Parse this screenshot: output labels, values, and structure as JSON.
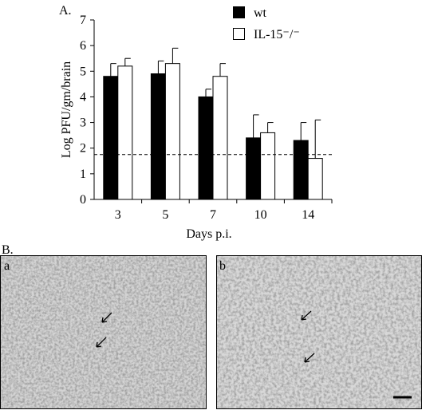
{
  "figure_labels": {
    "panel_a": "A.",
    "panel_b": "B."
  },
  "micrographs": [
    {
      "label": "a"
    },
    {
      "label": "b"
    }
  ],
  "chart_data": {
    "type": "bar",
    "ylabel": "Log PFU/gm/brain",
    "xlabel": "Days p.i.",
    "categories": [
      "3",
      "5",
      "7",
      "10",
      "14"
    ],
    "series": [
      {
        "name": "wt",
        "color": "#000000",
        "values": [
          4.8,
          4.9,
          4.0,
          2.4,
          2.3
        ],
        "errors": [
          0.5,
          0.5,
          0.3,
          0.9,
          0.7
        ]
      },
      {
        "name": "IL-15⁻/⁻",
        "color": "#ffffff",
        "values": [
          5.2,
          5.3,
          4.8,
          2.6,
          1.6
        ],
        "errors": [
          0.3,
          0.6,
          0.5,
          0.4,
          1.5
        ]
      }
    ],
    "threshold": 1.75,
    "ylim": [
      0,
      7
    ],
    "yticks": [
      0,
      1,
      2,
      3,
      4,
      5,
      6,
      7
    ],
    "grid": false
  }
}
